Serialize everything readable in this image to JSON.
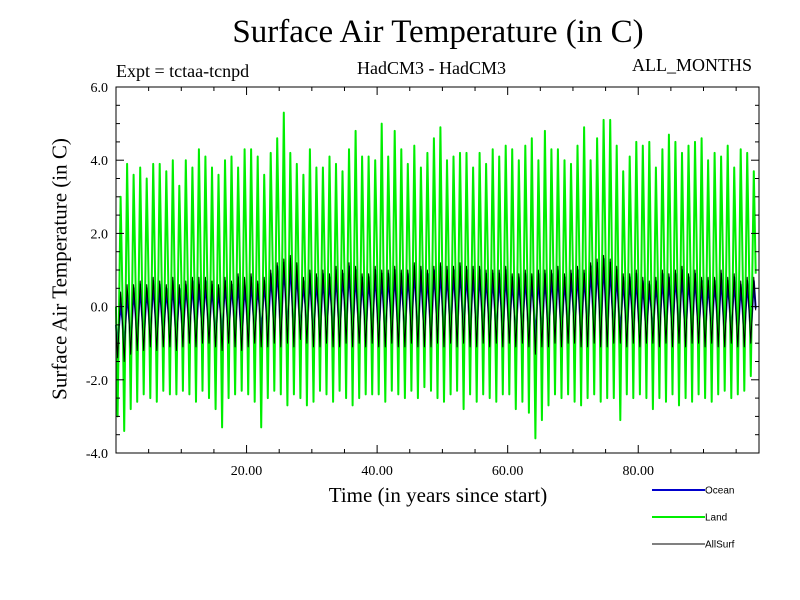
{
  "chart_data": {
    "type": "line",
    "title": "Surface Air Temperature (in C)",
    "subtitle_left": "Expt = tctaa-tcnpd",
    "subtitle_center": "HadCM3 - HadCM3",
    "subtitle_right": "ALL_MONTHS",
    "xlabel": "Time (in years since start)",
    "ylabel": "Surface Air Temperature (in C)",
    "xlim": [
      0,
      98.5
    ],
    "ylim": [
      -4.0,
      6.0
    ],
    "xticks": [
      20,
      40,
      60,
      80
    ],
    "xtick_labels": [
      "20.00",
      "40.00",
      "60.00",
      "80.00"
    ],
    "yticks": [
      -4,
      -2,
      0,
      2,
      4,
      6
    ],
    "ytick_labels": [
      "-4.0",
      "-2.0",
      "0.0",
      "2.0",
      "4.0",
      "6.0"
    ],
    "legend_position": "bottom-right",
    "grid": false,
    "series": [
      {
        "name": "Ocean",
        "color": "#0000cc",
        "x": [
          0.5,
          1.5,
          2.5,
          3.5,
          4.5,
          5.5,
          6.5,
          7.5,
          8.5,
          9.5,
          10.5,
          11.5,
          12.5,
          13.5,
          14.5,
          15.5,
          16.5,
          17.5,
          18.5,
          19.5,
          20.5,
          21.5,
          22.5,
          23.5,
          24.5,
          25.5,
          26.5,
          27.5,
          28.5,
          29.5,
          30.5,
          31.5,
          32.5,
          33.5,
          34.5,
          35.5,
          36.5,
          37.5,
          38.5,
          39.5,
          40.5,
          41.5,
          42.5,
          43.5,
          44.5,
          45.5,
          46.5,
          47.5,
          48.5,
          49.5,
          50.5,
          51.5,
          52.5,
          53.5,
          54.5,
          55.5,
          56.5,
          57.5,
          58.5,
          59.5,
          60.5,
          61.5,
          62.5,
          63.5,
          64.5,
          65.5,
          66.5,
          67.5,
          68.5,
          69.5,
          70.5,
          71.5,
          72.5,
          73.5,
          74.5,
          75.5,
          76.5,
          77.5,
          78.5,
          79.5,
          80.5,
          81.5,
          82.5,
          83.5,
          84.5,
          85.5,
          86.5,
          87.5,
          88.5,
          89.5,
          90.5,
          91.5,
          92.5,
          93.5,
          94.5,
          95.5,
          96.5,
          97.5
        ],
        "highs": [
          0.1,
          0.4,
          0.5,
          0.6,
          0.5,
          0.7,
          0.6,
          0.5,
          0.7,
          0.5,
          0.6,
          0.7,
          0.6,
          0.7,
          0.6,
          0.5,
          0.7,
          0.6,
          0.8,
          0.6,
          0.8,
          0.6,
          0.7,
          0.9,
          1.1,
          1.2,
          1.3,
          1.1,
          0.7,
          0.9,
          0.8,
          0.9,
          0.8,
          1.0,
          0.9,
          1.1,
          1.0,
          0.8,
          0.8,
          1.0,
          0.9,
          0.9,
          1.0,
          0.9,
          0.9,
          1.1,
          1.0,
          0.9,
          1.0,
          1.1,
          1.0,
          1.0,
          1.1,
          1.0,
          1.0,
          1.0,
          0.9,
          0.9,
          0.9,
          1.0,
          0.8,
          0.8,
          0.9,
          0.8,
          0.9,
          0.9,
          0.9,
          1.0,
          0.8,
          0.9,
          1.0,
          0.9,
          1.1,
          1.2,
          1.3,
          1.2,
          1.0,
          0.8,
          0.8,
          0.9,
          0.7,
          0.6,
          0.7,
          0.9,
          0.8,
          0.9,
          1.0,
          0.8,
          0.9,
          0.7,
          0.7,
          0.7,
          0.9,
          0.7,
          0.8,
          0.6,
          0.7,
          0.7
        ],
        "lows": [
          -1.1,
          -1.2,
          -1.1,
          -1.0,
          -1.0,
          -0.9,
          -1.0,
          -0.9,
          -0.9,
          -1.0,
          -0.9,
          -0.8,
          -0.9,
          -0.8,
          -0.8,
          -0.9,
          -0.9,
          -0.8,
          -0.9,
          -1.0,
          -0.9,
          -0.8,
          -0.8,
          -0.9,
          -0.8,
          -0.9,
          -0.8,
          -0.9,
          -0.7,
          -0.8,
          -0.9,
          -0.9,
          -0.8,
          -0.9,
          -0.9,
          -0.8,
          -0.9,
          -0.8,
          -0.9,
          -0.8,
          -0.9,
          -0.9,
          -0.8,
          -0.9,
          -0.9,
          -0.8,
          -0.9,
          -0.9,
          -0.9,
          -0.8,
          -0.9,
          -0.8,
          -0.9,
          -0.8,
          -0.9,
          -0.9,
          -0.8,
          -0.9,
          -0.8,
          -0.9,
          -0.8,
          -0.9,
          -0.8,
          -0.9,
          -1.0,
          -0.9,
          -0.9,
          -0.8,
          -0.9,
          -0.8,
          -0.8,
          -0.9,
          -0.9,
          -0.8,
          -0.9,
          -0.9,
          -0.8,
          -0.8,
          -0.9,
          -0.8,
          -0.9,
          -0.8,
          -0.8,
          -0.9,
          -0.8,
          -0.9,
          -0.8,
          -0.9,
          -0.8,
          -0.8,
          -0.9,
          -0.8,
          -0.9,
          -0.9,
          -0.8,
          -0.9,
          -0.9,
          -0.8
        ]
      },
      {
        "name": "Land",
        "color": "#00ee00",
        "x": [
          0.5,
          1.5,
          2.5,
          3.5,
          4.5,
          5.5,
          6.5,
          7.5,
          8.5,
          9.5,
          10.5,
          11.5,
          12.5,
          13.5,
          14.5,
          15.5,
          16.5,
          17.5,
          18.5,
          19.5,
          20.5,
          21.5,
          22.5,
          23.5,
          24.5,
          25.5,
          26.5,
          27.5,
          28.5,
          29.5,
          30.5,
          31.5,
          32.5,
          33.5,
          34.5,
          35.5,
          36.5,
          37.5,
          38.5,
          39.5,
          40.5,
          41.5,
          42.5,
          43.5,
          44.5,
          45.5,
          46.5,
          47.5,
          48.5,
          49.5,
          50.5,
          51.5,
          52.5,
          53.5,
          54.5,
          55.5,
          56.5,
          57.5,
          58.5,
          59.5,
          60.5,
          61.5,
          62.5,
          63.5,
          64.5,
          65.5,
          66.5,
          67.5,
          68.5,
          69.5,
          70.5,
          71.5,
          72.5,
          73.5,
          74.5,
          75.5,
          76.5,
          77.5,
          78.5,
          79.5,
          80.5,
          81.5,
          82.5,
          83.5,
          84.5,
          85.5,
          86.5,
          87.5,
          88.5,
          89.5,
          90.5,
          91.5,
          92.5,
          93.5,
          94.5,
          95.5,
          96.5,
          97.5
        ],
        "highs": [
          3.0,
          3.9,
          3.6,
          3.8,
          3.5,
          3.9,
          3.9,
          3.7,
          4.0,
          3.3,
          4.0,
          3.8,
          4.3,
          4.1,
          3.8,
          3.6,
          4.0,
          4.1,
          3.8,
          4.3,
          4.3,
          4.1,
          3.6,
          4.2,
          4.6,
          5.3,
          4.2,
          3.9,
          3.6,
          4.3,
          3.8,
          3.8,
          4.1,
          3.9,
          3.7,
          4.3,
          4.8,
          4.1,
          4.1,
          4.0,
          5.0,
          4.1,
          4.8,
          4.3,
          3.9,
          4.4,
          3.8,
          4.2,
          4.6,
          4.9,
          4.0,
          4.1,
          4.2,
          4.2,
          3.8,
          4.2,
          3.9,
          4.3,
          4.1,
          4.4,
          4.3,
          4.0,
          4.4,
          4.6,
          4.0,
          4.8,
          4.3,
          4.3,
          4.0,
          3.9,
          4.4,
          4.9,
          4.0,
          4.6,
          5.1,
          5.1,
          4.4,
          3.7,
          4.1,
          4.5,
          4.4,
          4.5,
          3.8,
          4.3,
          4.7,
          4.5,
          4.2,
          4.4,
          4.5,
          4.6,
          4.0,
          4.2,
          4.1,
          4.4,
          3.8,
          4.3,
          4.2,
          3.7
        ],
        "lows": [
          -3.0,
          -3.4,
          -2.8,
          -2.6,
          -2.4,
          -2.5,
          -2.6,
          -2.3,
          -2.4,
          -2.4,
          -2.3,
          -2.4,
          -2.6,
          -2.3,
          -2.5,
          -2.8,
          -3.3,
          -2.5,
          -2.4,
          -2.3,
          -2.4,
          -2.6,
          -3.3,
          -2.5,
          -2.3,
          -2.4,
          -2.7,
          -2.4,
          -2.5,
          -2.7,
          -2.6,
          -2.3,
          -2.4,
          -2.6,
          -2.3,
          -2.5,
          -2.7,
          -2.5,
          -2.4,
          -2.4,
          -2.4,
          -2.6,
          -2.3,
          -2.4,
          -2.5,
          -2.3,
          -2.5,
          -2.2,
          -2.3,
          -2.5,
          -2.6,
          -2.4,
          -2.3,
          -2.8,
          -2.4,
          -2.6,
          -2.4,
          -2.5,
          -2.6,
          -2.4,
          -2.4,
          -2.8,
          -2.6,
          -2.9,
          -3.6,
          -3.1,
          -2.7,
          -2.4,
          -2.5,
          -2.4,
          -2.6,
          -2.7,
          -2.5,
          -2.4,
          -2.6,
          -2.5,
          -2.5,
          -3.1,
          -2.4,
          -2.5,
          -2.4,
          -2.5,
          -2.8,
          -2.5,
          -2.6,
          -2.4,
          -2.7,
          -2.5,
          -2.6,
          -2.4,
          -2.5,
          -2.6,
          -2.4,
          -2.3,
          -2.5,
          -2.4,
          -2.3,
          -1.9
        ]
      },
      {
        "name": "AllSurf",
        "color": "#000000",
        "x": [
          0.5,
          1.5,
          2.5,
          3.5,
          4.5,
          5.5,
          6.5,
          7.5,
          8.5,
          9.5,
          10.5,
          11.5,
          12.5,
          13.5,
          14.5,
          15.5,
          16.5,
          17.5,
          18.5,
          19.5,
          20.5,
          21.5,
          22.5,
          23.5,
          24.5,
          25.5,
          26.5,
          27.5,
          28.5,
          29.5,
          30.5,
          31.5,
          32.5,
          33.5,
          34.5,
          35.5,
          36.5,
          37.5,
          38.5,
          39.5,
          40.5,
          41.5,
          42.5,
          43.5,
          44.5,
          45.5,
          46.5,
          47.5,
          48.5,
          49.5,
          50.5,
          51.5,
          52.5,
          53.5,
          54.5,
          55.5,
          56.5,
          57.5,
          58.5,
          59.5,
          60.5,
          61.5,
          62.5,
          63.5,
          64.5,
          65.5,
          66.5,
          67.5,
          68.5,
          69.5,
          70.5,
          71.5,
          72.5,
          73.5,
          74.5,
          75.5,
          76.5,
          77.5,
          78.5,
          79.5,
          80.5,
          81.5,
          82.5,
          83.5,
          84.5,
          85.5,
          86.5,
          87.5,
          88.5,
          89.5,
          90.5,
          91.5,
          92.5,
          93.5,
          94.5,
          95.5,
          96.5,
          97.5
        ],
        "highs": [
          0.4,
          0.6,
          0.6,
          0.7,
          0.6,
          0.8,
          0.7,
          0.6,
          0.8,
          0.6,
          0.7,
          0.8,
          0.8,
          0.8,
          0.7,
          0.6,
          0.8,
          0.7,
          0.9,
          0.8,
          0.9,
          0.7,
          0.8,
          1.0,
          1.2,
          1.3,
          1.4,
          1.2,
          0.8,
          1.0,
          0.9,
          1.0,
          0.9,
          1.1,
          1.0,
          1.2,
          1.1,
          0.9,
          0.9,
          1.1,
          1.0,
          1.0,
          1.1,
          1.0,
          1.0,
          1.2,
          1.1,
          1.0,
          1.1,
          1.2,
          1.1,
          1.1,
          1.2,
          1.1,
          1.1,
          1.1,
          1.0,
          1.0,
          1.0,
          1.1,
          0.9,
          0.9,
          1.0,
          0.9,
          1.0,
          1.0,
          1.0,
          1.1,
          0.9,
          1.0,
          1.1,
          1.0,
          1.2,
          1.3,
          1.4,
          1.3,
          1.1,
          0.9,
          0.9,
          1.0,
          0.8,
          0.7,
          0.8,
          1.0,
          0.9,
          1.0,
          1.1,
          0.9,
          1.0,
          0.8,
          0.8,
          0.8,
          1.0,
          0.8,
          0.9,
          0.7,
          0.8,
          0.8
        ],
        "lows": [
          -1.4,
          -1.5,
          -1.3,
          -1.2,
          -1.2,
          -1.1,
          -1.2,
          -1.1,
          -1.1,
          -1.2,
          -1.1,
          -1.0,
          -1.1,
          -1.0,
          -1.0,
          -1.1,
          -1.2,
          -1.0,
          -1.1,
          -1.2,
          -1.1,
          -1.0,
          -1.1,
          -1.1,
          -1.0,
          -1.1,
          -1.0,
          -1.1,
          -0.9,
          -1.0,
          -1.1,
          -1.1,
          -1.0,
          -1.1,
          -1.1,
          -1.0,
          -1.1,
          -1.0,
          -1.1,
          -1.0,
          -1.1,
          -1.1,
          -1.0,
          -1.1,
          -1.1,
          -1.0,
          -1.1,
          -1.1,
          -1.1,
          -1.0,
          -1.1,
          -1.0,
          -1.1,
          -1.0,
          -1.1,
          -1.1,
          -1.0,
          -1.1,
          -1.0,
          -1.1,
          -1.0,
          -1.1,
          -1.0,
          -1.1,
          -1.3,
          -1.1,
          -1.1,
          -1.0,
          -1.1,
          -1.0,
          -1.0,
          -1.1,
          -1.1,
          -1.0,
          -1.1,
          -1.1,
          -1.0,
          -1.0,
          -1.1,
          -1.0,
          -1.1,
          -1.0,
          -1.0,
          -1.1,
          -1.0,
          -1.1,
          -1.0,
          -1.1,
          -1.0,
          -1.0,
          -1.1,
          -1.0,
          -1.1,
          -1.1,
          -1.0,
          -1.1,
          -1.1,
          -1.0
        ]
      }
    ]
  }
}
